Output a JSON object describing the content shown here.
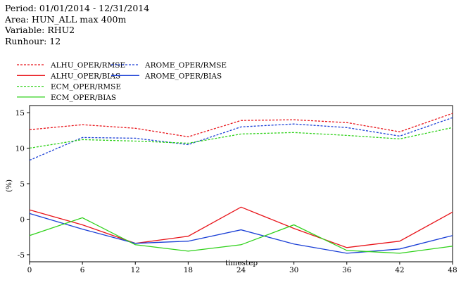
{
  "header": {
    "period": "Period: 01/01/2014 - 12/31/2014",
    "area": "Area: HUN_ALL max 400m",
    "variable": "Variable: RHU2",
    "runhour": "Runhour: 12"
  },
  "chart_data": {
    "type": "line",
    "title": "",
    "xlabel": "timestep",
    "ylabel": "(%)",
    "x": [
      0,
      6,
      12,
      18,
      24,
      30,
      36,
      42,
      48
    ],
    "xlim": [
      0,
      48
    ],
    "ylim": [
      -6,
      16
    ],
    "xticks": [
      0,
      6,
      12,
      18,
      24,
      30,
      36,
      42,
      48
    ],
    "yticks": [
      -5,
      0,
      5,
      10,
      15
    ],
    "grid": false,
    "legend_position": "top-left",
    "series": [
      {
        "name": "ALHU_OPER/RMSE",
        "color": "#e8141a",
        "dash": true,
        "values": [
          12.6,
          13.3,
          12.8,
          11.6,
          13.9,
          14.0,
          13.6,
          12.3,
          14.9
        ]
      },
      {
        "name": "AROME_OPER/RMSE",
        "color": "#1a3fd6",
        "dash": true,
        "values": [
          8.3,
          11.5,
          11.4,
          10.5,
          13.0,
          13.4,
          12.9,
          11.7,
          14.3
        ]
      },
      {
        "name": "ALHU_OPER/BIAS",
        "color": "#e8141a",
        "dash": false,
        "values": [
          1.3,
          -0.8,
          -3.4,
          -2.4,
          1.7,
          -1.3,
          -4.0,
          -3.1,
          1.0
        ]
      },
      {
        "name": "AROME_OPER/BIAS",
        "color": "#1a3fd6",
        "dash": false,
        "values": [
          0.8,
          -1.4,
          -3.4,
          -3.1,
          -1.5,
          -3.5,
          -4.8,
          -4.2,
          -2.3
        ]
      },
      {
        "name": "ECM_OPER/RMSE",
        "color": "#2ed119",
        "dash": true,
        "values": [
          10.0,
          11.2,
          11.0,
          10.7,
          12.0,
          12.2,
          11.8,
          11.3,
          12.9
        ]
      },
      {
        "name": "ECM_OPER/BIAS",
        "color": "#2ed119",
        "dash": false,
        "values": [
          -2.3,
          0.2,
          -3.6,
          -4.5,
          -3.6,
          -0.8,
          -4.4,
          -4.8,
          -3.8
        ]
      }
    ]
  }
}
